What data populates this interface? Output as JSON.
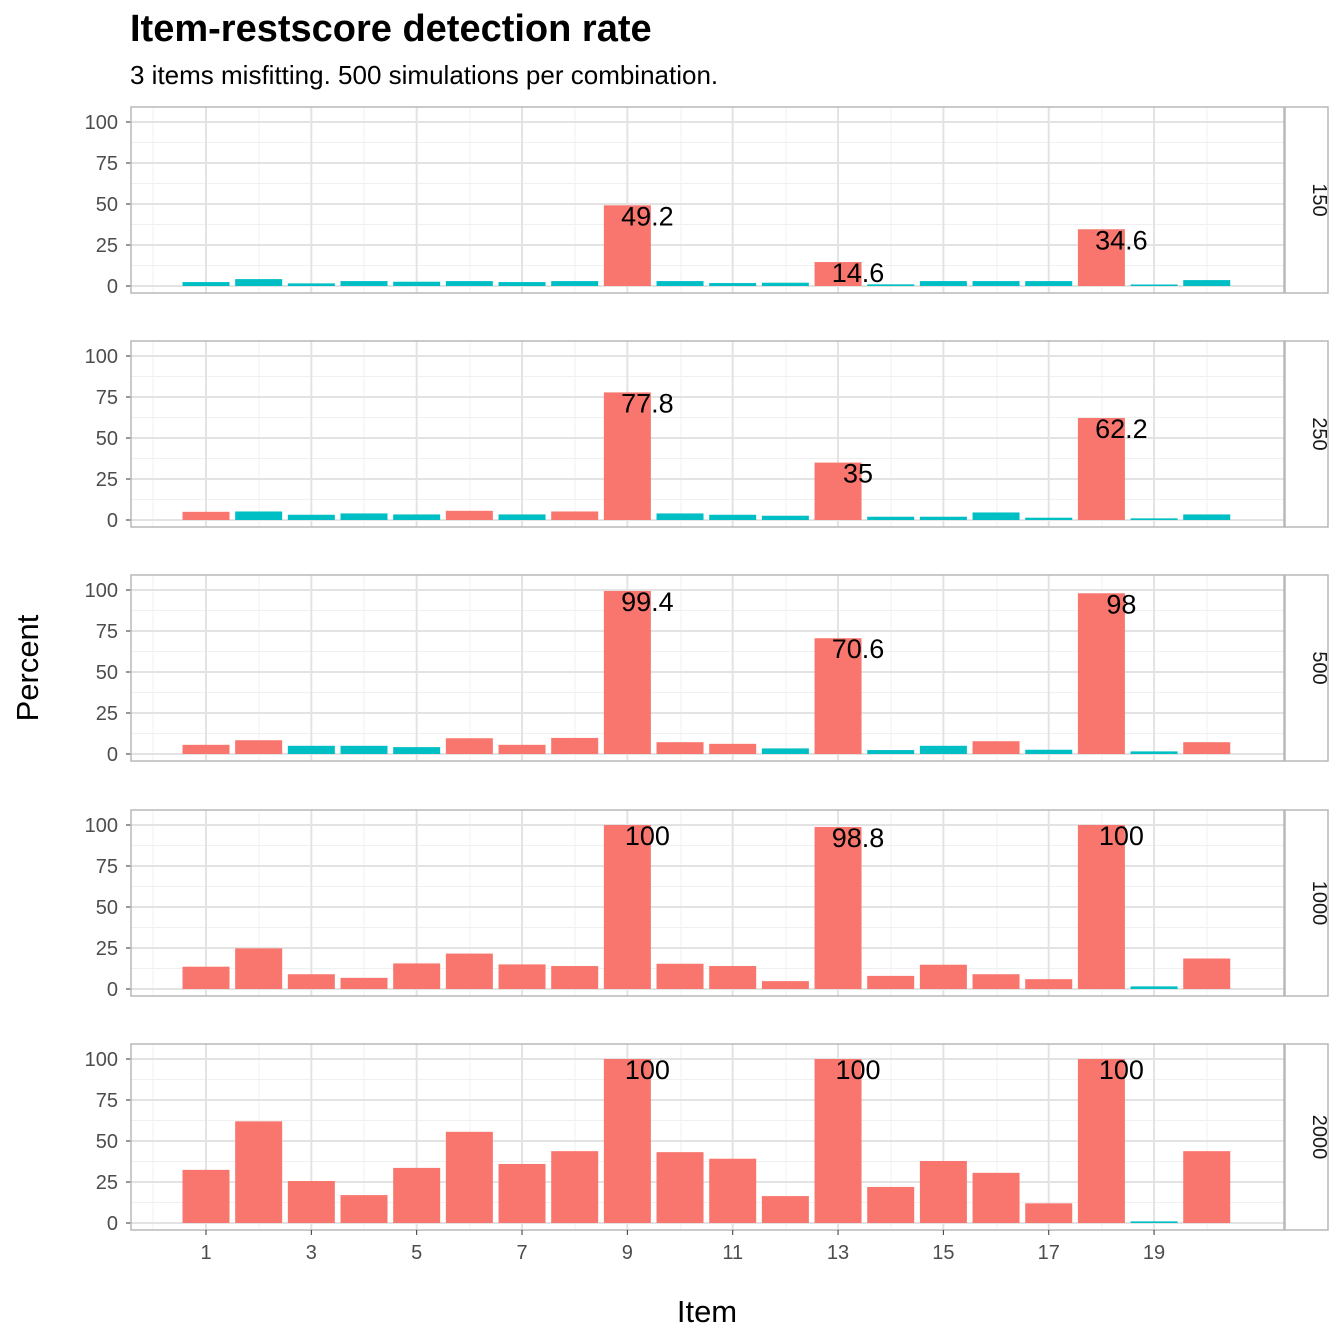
{
  "title": "Item-restscore detection rate",
  "subtitle": "3 items misfitting. 500 simulations per combination.",
  "chart_data": {
    "type": "bar",
    "title": "Item-restscore detection rate",
    "subtitle": "3 items misfitting. 500 simulations per combination.",
    "xlabel": "Item",
    "ylabel": "Percent",
    "ylim": [
      0,
      105
    ],
    "yticks": [
      0,
      25,
      50,
      75,
      100
    ],
    "xticks": [
      1,
      3,
      5,
      7,
      9,
      11,
      13,
      15,
      17,
      19
    ],
    "grid": true,
    "colors": {
      "flagged": "#F8766D",
      "not_flagged": "#00BFC4"
    },
    "facets": [
      {
        "label": "150",
        "values": [
          2.4,
          4.2,
          1.6,
          3.0,
          2.6,
          3.0,
          2.4,
          3.0,
          49.2,
          3.0,
          1.8,
          2.0,
          14.6,
          1.0,
          3.0,
          3.0,
          3.0,
          34.6,
          0.4,
          3.6
        ],
        "flagged": [
          false,
          false,
          false,
          false,
          false,
          false,
          false,
          false,
          true,
          false,
          false,
          false,
          true,
          false,
          false,
          false,
          false,
          true,
          false,
          false
        ],
        "labels": {
          "9": "49.2",
          "13": "14.6",
          "18": "34.6"
        }
      },
      {
        "label": "250",
        "values": [
          5.0,
          5.2,
          3.2,
          4.0,
          3.4,
          5.6,
          3.4,
          5.2,
          77.8,
          4.0,
          3.2,
          2.6,
          35.0,
          2.0,
          2.0,
          4.6,
          1.4,
          62.2,
          1.0,
          3.4
        ],
        "flagged": [
          true,
          false,
          false,
          false,
          false,
          true,
          false,
          true,
          true,
          false,
          false,
          false,
          true,
          false,
          false,
          false,
          false,
          true,
          false,
          false
        ],
        "labels": {
          "9": "77.8",
          "13": "35",
          "18": "62.2"
        }
      },
      {
        "label": "500",
        "values": [
          5.6,
          8.4,
          5.0,
          5.0,
          4.2,
          9.6,
          5.6,
          9.8,
          99.4,
          7.2,
          6.2,
          3.4,
          70.6,
          2.4,
          5.0,
          7.8,
          2.6,
          98.0,
          1.6,
          7.2
        ],
        "flagged": [
          true,
          true,
          false,
          false,
          false,
          true,
          true,
          true,
          true,
          true,
          true,
          false,
          true,
          false,
          false,
          true,
          false,
          true,
          false,
          true
        ],
        "labels": {
          "9": "99.4",
          "13": "70.6",
          "18": "98"
        }
      },
      {
        "label": "1000",
        "values": [
          13.6,
          24.8,
          9.0,
          6.8,
          15.6,
          21.6,
          15.0,
          14.0,
          100,
          15.4,
          14.0,
          4.8,
          98.8,
          8.0,
          14.8,
          9.0,
          6.0,
          100,
          1.6,
          18.6
        ],
        "flagged": [
          true,
          true,
          true,
          true,
          true,
          true,
          true,
          true,
          true,
          true,
          true,
          true,
          true,
          true,
          true,
          true,
          true,
          true,
          false,
          true
        ],
        "labels": {
          "9": "100",
          "13": "98.8",
          "18": "100"
        }
      },
      {
        "label": "2000",
        "values": [
          32.4,
          62.0,
          25.6,
          17.0,
          33.6,
          55.6,
          36.0,
          43.8,
          100,
          43.2,
          39.2,
          16.4,
          100,
          22.0,
          37.8,
          30.6,
          12.0,
          100,
          1.0,
          43.8
        ],
        "flagged": [
          true,
          true,
          true,
          true,
          true,
          true,
          true,
          true,
          true,
          true,
          true,
          true,
          true,
          true,
          true,
          true,
          true,
          true,
          false,
          true
        ],
        "labels": {
          "9": "100",
          "13": "100",
          "18": "100"
        }
      }
    ]
  }
}
